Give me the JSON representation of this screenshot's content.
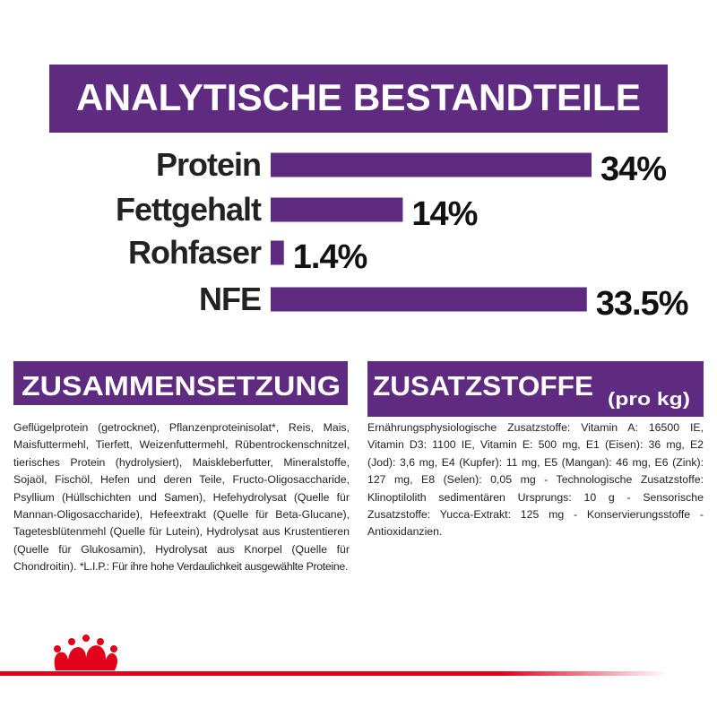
{
  "header": {
    "title": "ANALYTISCHE BESTANDTEILE"
  },
  "chart_data": {
    "type": "bar",
    "orientation": "horizontal",
    "color": "#5f2b80",
    "categories": [
      "Protein",
      "Fettgehalt",
      "Rohfaser",
      "NFE"
    ],
    "values": [
      34,
      14,
      1.4,
      33.5
    ],
    "value_labels": [
      "34%",
      "14%",
      "1.4%",
      "33.5%"
    ]
  },
  "composition": {
    "title": "ZUSAMMENSETZUNG",
    "text": "Geflügelprotein (getrocknet), Pflanzenproteinisolat*, Reis, Mais, Maisfuttermehl, Tierfett, Weizenfuttermehl, Rübentrockenschnitzel, tierisches Protein (hydrolysiert), Maiskleberfutter, Mineralstoffe, Sojaöl, Fischöl, Hefen und deren Teile, Fructo-Oligosaccharide, Psyllium (Hüllschichten und Samen), Hefehydrolysat (Quelle für Mannan-Oligosaccharide), Hefeextrakt (Quelle für Beta-Glucane), Tagetesblütenmehl (Quelle für Lutein), Hydrolysat aus Krustentieren (Quelle für Glukosamin), Hydrolysat aus Knorpel (Quelle für Chondroitin).",
    "footnote": "*L.I.P.: Für ihre hohe Verdaulichkeit ausgewählte Proteine."
  },
  "additives": {
    "title": "ZUSATZSTOFFE",
    "unit": "(pro kg)",
    "text": "Ernährungsphysiologische Zusatzstoffe: Vitamin A: 16500 IE, Vitamin D3: 1100 IE, Vitamin E: 500 mg, E1 (Eisen): 36 mg, E2 (Jod): 3,6 mg, E4 (Kupfer): 11 mg, E5 (Mangan): 46 mg, E6 (Zink): 127 mg, E8 (Selen): 0,05 mg - Technologische Zusatzstoffe: Klinoptilolith sedimentären Ursprungs: 10 g - Sensorische Zusatzstoffe: Yucca-Extrakt: 125 mg - Konservierungsstoffe - Antioxidanzien."
  }
}
